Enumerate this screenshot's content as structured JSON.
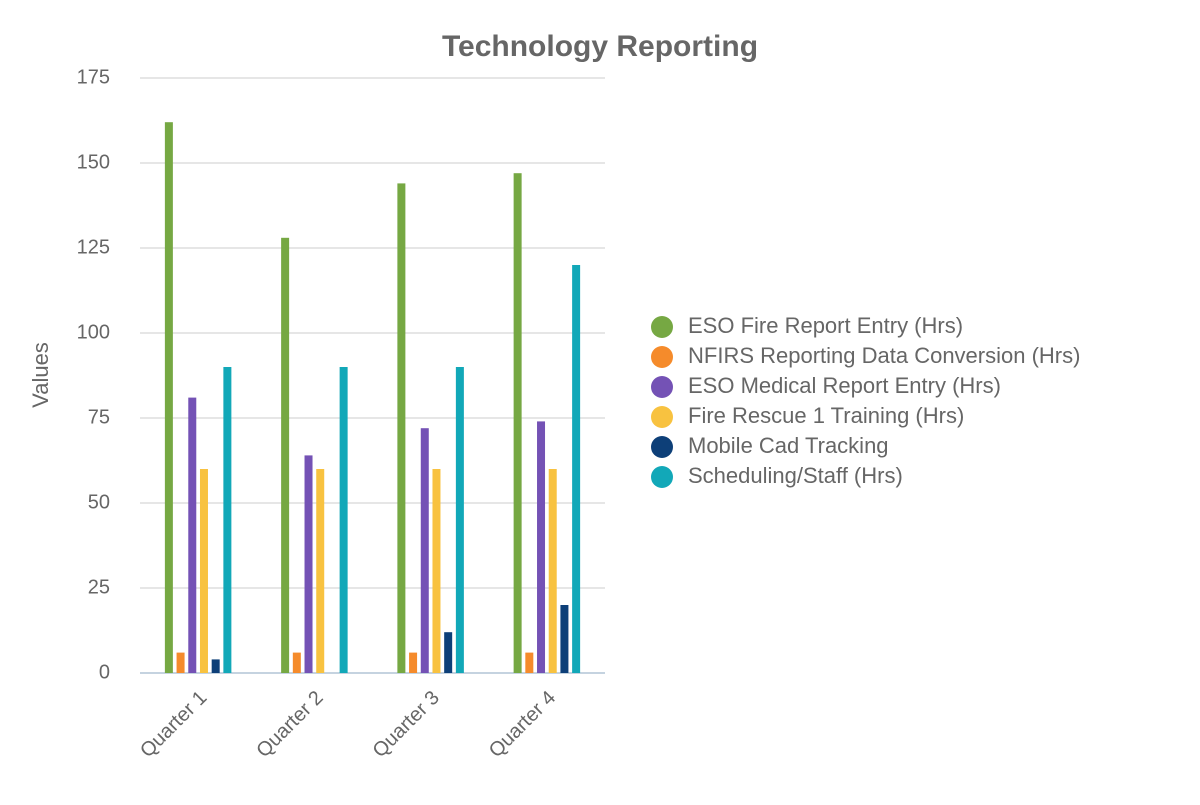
{
  "chart_data": {
    "type": "bar",
    "title": "Technology Reporting",
    "y_label": "Values",
    "categories": [
      "Quarter 1",
      "Quarter 2",
      "Quarter 3",
      "Quarter 4"
    ],
    "series": [
      {
        "name": "ESO Fire Report Entry (Hrs)",
        "color": "#76a843",
        "values": [
          162,
          128,
          144,
          147
        ]
      },
      {
        "name": "NFIRS Reporting Data Conversion (Hrs)",
        "color": "#f58b2b",
        "values": [
          6,
          6,
          6,
          6
        ]
      },
      {
        "name": "ESO Medical Report Entry (Hrs)",
        "color": "#7452b5",
        "values": [
          81,
          64,
          72,
          74
        ]
      },
      {
        "name": "Fire Rescue 1 Training (Hrs)",
        "color": "#f8c240",
        "values": [
          60,
          60,
          60,
          60
        ]
      },
      {
        "name": "Mobile Cad Tracking",
        "color": "#0d3f78",
        "values": [
          4,
          0,
          12,
          20
        ]
      },
      {
        "name": "Scheduling/Staff (Hrs)",
        "color": "#12a8b8",
        "values": [
          90,
          90,
          90,
          120
        ]
      }
    ],
    "ylim": [
      0,
      175
    ],
    "yticks": [
      0,
      25,
      50,
      75,
      100,
      125,
      150,
      175
    ],
    "grid": true,
    "legend": "right"
  }
}
